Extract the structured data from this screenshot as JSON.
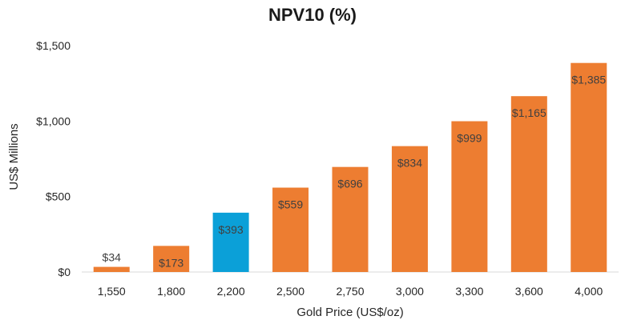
{
  "chart_data": {
    "type": "bar",
    "title": "NPV10 (%)",
    "xlabel": "Gold Price (US$/oz)",
    "ylabel": "US$ Millions",
    "categories": [
      "1,550",
      "1,800",
      "2,200",
      "2,500",
      "2,750",
      "3,000",
      "3,300",
      "3,600",
      "4,000"
    ],
    "values": [
      34,
      173,
      393,
      559,
      696,
      834,
      999,
      1165,
      1385
    ],
    "data_labels": [
      "$34",
      "$173",
      "$393",
      "$559",
      "$696",
      "$834",
      "$999",
      "$1,165",
      "$1,385"
    ],
    "y_ticks": [
      0,
      500,
      1000,
      1500
    ],
    "y_tick_labels": [
      "$0",
      "$500",
      "$1,000",
      "$1,500"
    ],
    "ylim": [
      0,
      1500
    ],
    "grid": false,
    "legend": "none",
    "colors": {
      "default_bar": "#ED7D31",
      "highlight_bar": "#0BA0D8",
      "axis_line": "#d9d9d9"
    },
    "highlight_index": 2
  }
}
